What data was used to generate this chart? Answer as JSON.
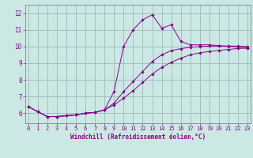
{
  "xlabel": "Windchill (Refroidissement éolien,°C)",
  "bg_color": "#cce8e4",
  "line_color": "#880088",
  "grid_color": "#99bbbb",
  "x_ticks": [
    0,
    1,
    2,
    3,
    4,
    5,
    6,
    7,
    8,
    9,
    10,
    11,
    12,
    13,
    14,
    15,
    16,
    17,
    18,
    19,
    20,
    21,
    22,
    23
  ],
  "y_ticks": [
    6,
    7,
    8,
    9,
    10,
    11,
    12
  ],
  "ylim": [
    5.4,
    12.5
  ],
  "xlim": [
    -0.3,
    23.3
  ],
  "line1_y": [
    6.4,
    6.1,
    5.8,
    5.8,
    5.85,
    5.9,
    6.0,
    6.05,
    6.2,
    7.3,
    10.0,
    11.0,
    11.6,
    11.9,
    11.1,
    11.3,
    10.3,
    10.1,
    10.1,
    10.1,
    10.05,
    10.0,
    9.97,
    9.9
  ],
  "line2_y": [
    6.4,
    6.1,
    5.8,
    5.8,
    5.85,
    5.9,
    6.0,
    6.05,
    6.2,
    6.6,
    7.3,
    7.9,
    8.5,
    9.1,
    9.5,
    9.75,
    9.87,
    9.95,
    10.0,
    10.02,
    10.03,
    10.03,
    10.02,
    10.0
  ],
  "line3_y": [
    6.4,
    6.1,
    5.8,
    5.8,
    5.85,
    5.9,
    6.0,
    6.05,
    6.2,
    6.5,
    6.9,
    7.35,
    7.85,
    8.35,
    8.75,
    9.05,
    9.3,
    9.5,
    9.62,
    9.7,
    9.77,
    9.82,
    9.88,
    9.9
  ]
}
